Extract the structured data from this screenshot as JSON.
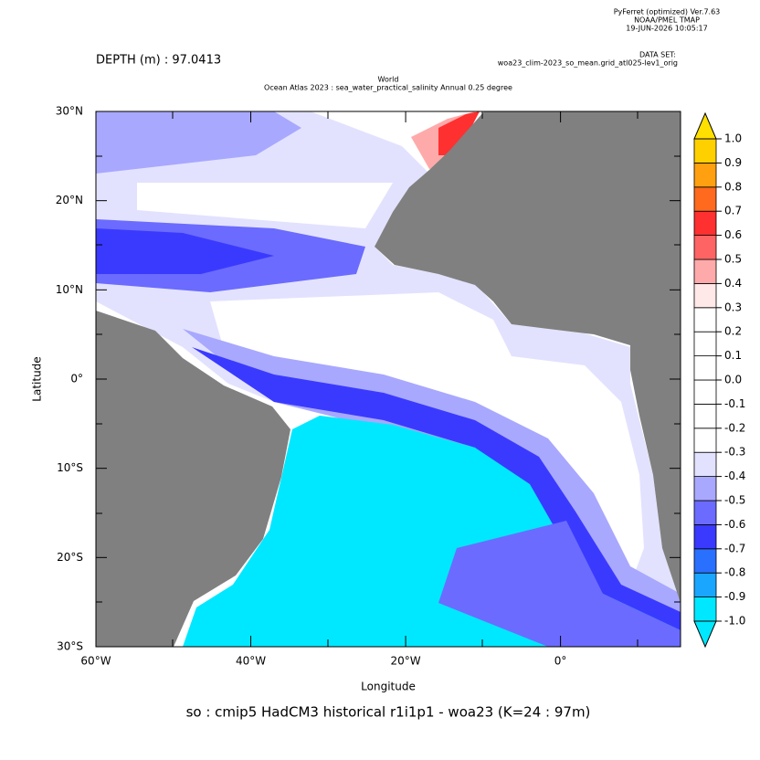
{
  "header": {
    "software": "PyFerret (optimized) Ver.7.63",
    "org": "NOAA/PMEL TMAP",
    "date": "19-JUN-2026 10:05:17",
    "dataset_label": "DATA SET:",
    "dataset": "woa23_clim-2023_so_mean.grid_atl025-lev1_orig",
    "depth": "DEPTH (m) : 97.0413"
  },
  "chart_data": {
    "type": "map",
    "title": "World",
    "subtitle": "Ocean Atlas 2023 : sea_water_practical_salinity Annual  0.25 degree",
    "x_label": "Longitude",
    "y_label": "Latitude",
    "caption": "so : cmip5 HadCM3 historical r1i1p1 - woa23  (K=24 : 97m)",
    "xlim": [
      -60,
      15.5
    ],
    "ylim": [
      -30,
      30
    ],
    "xticks": [
      {
        "value": -60,
        "label": "60°W"
      },
      {
        "value": -40,
        "label": "40°W"
      },
      {
        "value": -20,
        "label": "20°W"
      },
      {
        "value": 0,
        "label": "0°"
      }
    ],
    "yticks": [
      {
        "value": -30,
        "label": "30°S"
      },
      {
        "value": -20,
        "label": "20°S"
      },
      {
        "value": -10,
        "label": "10°S"
      },
      {
        "value": 0,
        "label": "0°"
      },
      {
        "value": 10,
        "label": "10°N"
      },
      {
        "value": 20,
        "label": "20°N"
      },
      {
        "value": 30,
        "label": "30°N"
      }
    ],
    "colorbar": {
      "levels": [
        {
          "value": -1,
          "label": "-1.0"
        },
        {
          "value": -0.9,
          "label": "-0.9"
        },
        {
          "value": -0.8,
          "label": "-0.8"
        },
        {
          "value": -0.7,
          "label": "-0.7"
        },
        {
          "value": -0.6,
          "label": "-0.6"
        },
        {
          "value": -0.5,
          "label": "-0.5"
        },
        {
          "value": -0.4,
          "label": "-0.4"
        },
        {
          "value": -0.3,
          "label": "-0.3"
        },
        {
          "value": -0.2,
          "label": "-0.2"
        },
        {
          "value": -0.1,
          "label": "-0.1"
        },
        {
          "value": 0,
          "label": "0.0"
        },
        {
          "value": 0.1,
          "label": "0.1"
        },
        {
          "value": 0.2,
          "label": "0.2"
        },
        {
          "value": 0.3,
          "label": "0.3"
        },
        {
          "value": 0.4,
          "label": "0.4"
        },
        {
          "value": 0.5,
          "label": "0.5"
        },
        {
          "value": 0.6,
          "label": "0.6"
        },
        {
          "value": 0.7,
          "label": "0.7"
        },
        {
          "value": 0.8,
          "label": "0.8"
        },
        {
          "value": 0.9,
          "label": "0.9"
        },
        {
          "value": 1,
          "label": "1.0"
        }
      ],
      "colors": [
        "#00e8ff",
        "#1aa6ff",
        "#2a70ff",
        "#3a3aff",
        "#6b6bff",
        "#a8a8ff",
        "#e2e2ff",
        "#ffffff",
        "#ffffff",
        "#ffffff",
        "#ffffff",
        "#ffffff",
        "#ffffff",
        "#ffe8e8",
        "#ffaaaa",
        "#ff6464",
        "#ff3030",
        "#ff6a1e",
        "#ffa010",
        "#ffd000"
      ],
      "under_color": "#00e8ff",
      "over_color": "#ffe000"
    }
  }
}
